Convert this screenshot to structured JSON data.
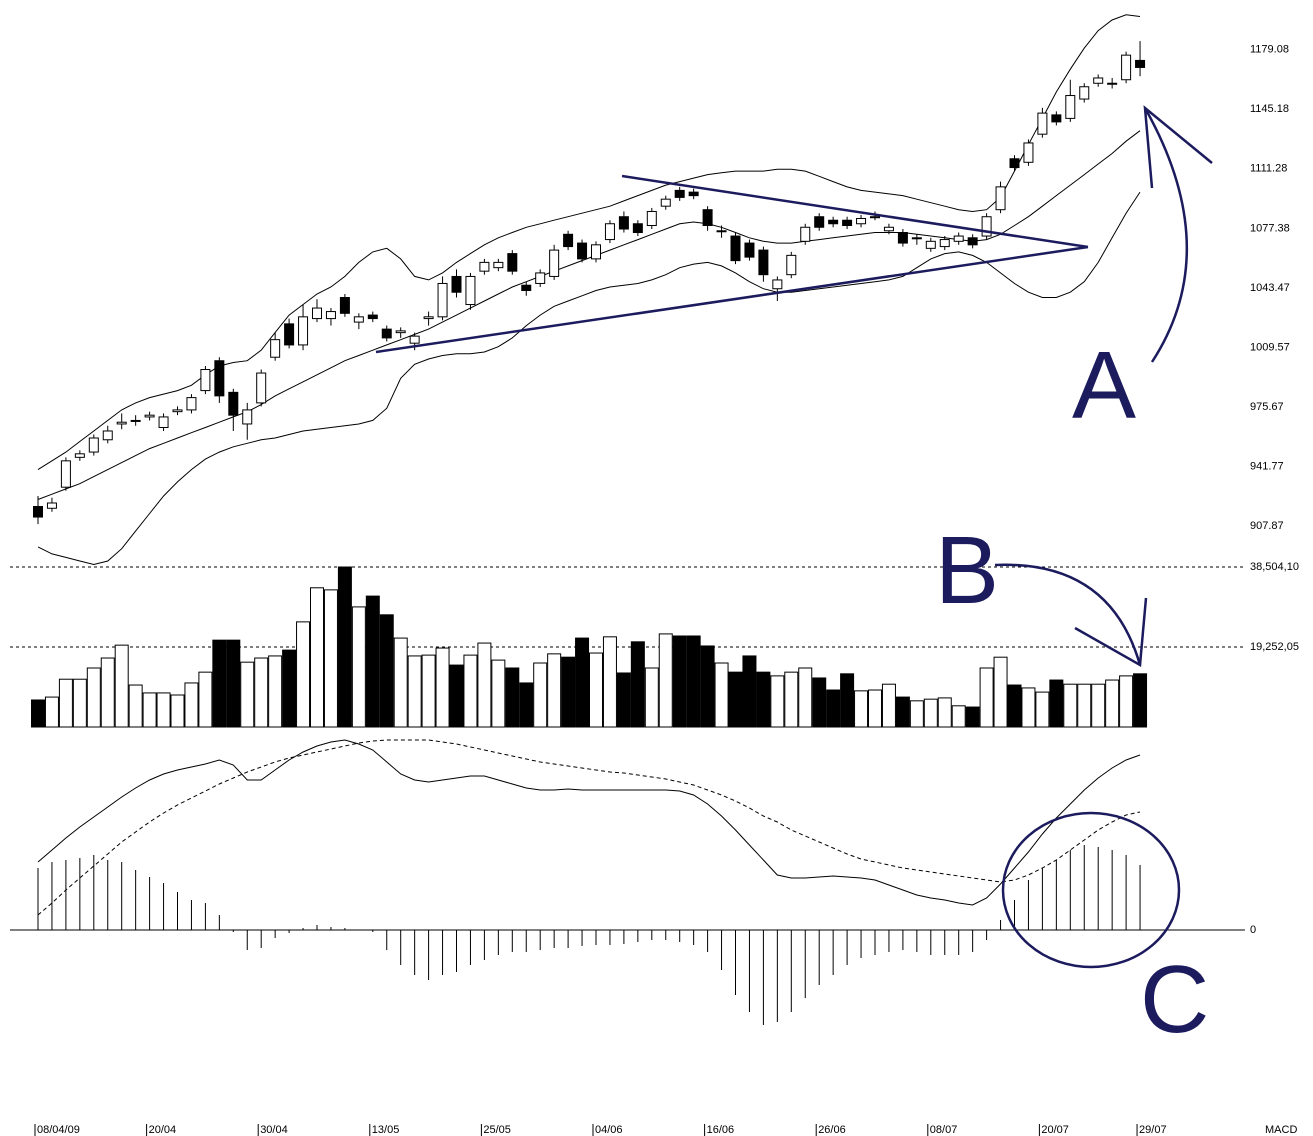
{
  "annotations": [
    "A",
    "B",
    "C"
  ],
  "chart_data": [
    {
      "type": "candlestick",
      "categories": [
        "08/04/09",
        null,
        null,
        null,
        null,
        null,
        null,
        null,
        "20/04",
        null,
        null,
        null,
        null,
        null,
        null,
        null,
        "30/04",
        null,
        null,
        null,
        null,
        null,
        null,
        null,
        "13/05",
        null,
        null,
        null,
        null,
        null,
        null,
        null,
        "25/05",
        null,
        null,
        null,
        null,
        null,
        null,
        null,
        "04/06",
        null,
        null,
        null,
        null,
        null,
        null,
        null,
        "16/06",
        null,
        null,
        null,
        null,
        null,
        null,
        null,
        "26/06",
        null,
        null,
        null,
        null,
        null,
        null,
        null,
        "08/07",
        null,
        null,
        null,
        null,
        null,
        null,
        null,
        "20/07",
        null,
        null,
        null,
        null,
        null,
        null,
        "29/07"
      ],
      "open": [
        919,
        918,
        930,
        947,
        950,
        957,
        966,
        968,
        970,
        964,
        973,
        974,
        985,
        1002,
        984,
        966,
        978,
        1004,
        1023,
        1011,
        1026,
        1026,
        1038,
        1024,
        1028,
        1020,
        1018,
        1012,
        1026,
        1027,
        1050,
        1034,
        1053,
        1055,
        1063,
        1045,
        1046,
        1050,
        1074,
        1069,
        1060,
        1071,
        1084,
        1080,
        1079,
        1090,
        1099,
        1098,
        1088,
        1076,
        1073,
        1069,
        1065,
        1043,
        1051,
        1070,
        1084,
        1082,
        1082,
        1080,
        1084,
        1076,
        1075,
        1072,
        1066,
        1067,
        1070,
        1072,
        1073,
        1088,
        1117,
        1115,
        1131,
        1142,
        1140,
        1151,
        1160,
        1160,
        1162,
        1173
      ],
      "high": [
        925,
        924,
        947,
        951,
        960,
        965,
        972,
        971,
        973,
        972,
        976,
        983,
        999,
        1004,
        986,
        978,
        997,
        1018,
        1026,
        1034,
        1037,
        1032,
        1040,
        1029,
        1030,
        1022,
        1021,
        1018,
        1030,
        1050,
        1054,
        1052,
        1060,
        1060,
        1065,
        1047,
        1054,
        1068,
        1076,
        1071,
        1070,
        1082,
        1087,
        1082,
        1089,
        1096,
        1101,
        1100,
        1090,
        1079,
        1075,
        1071,
        1067,
        1050,
        1064,
        1080,
        1086,
        1084,
        1084,
        1085,
        1087,
        1080,
        1077,
        1074,
        1072,
        1073,
        1075,
        1074,
        1086,
        1104,
        1119,
        1128,
        1146,
        1144,
        1162,
        1160,
        1165,
        1163,
        1178,
        1184
      ],
      "low": [
        909,
        916,
        928,
        945,
        948,
        955,
        963,
        965,
        968,
        962,
        971,
        972,
        983,
        978,
        962,
        957,
        976,
        1002,
        1009,
        1008,
        1024,
        1022,
        1027,
        1020,
        1024,
        1013,
        1015,
        1008,
        1022,
        1025,
        1038,
        1031,
        1051,
        1053,
        1051,
        1039,
        1044,
        1048,
        1065,
        1058,
        1058,
        1069,
        1075,
        1073,
        1077,
        1088,
        1093,
        1094,
        1076,
        1072,
        1057,
        1059,
        1047,
        1036,
        1049,
        1068,
        1076,
        1078,
        1077,
        1078,
        1082,
        1074,
        1067,
        1068,
        1064,
        1065,
        1068,
        1066,
        1071,
        1086,
        1110,
        1113,
        1129,
        1136,
        1138,
        1149,
        1158,
        1157,
        1160,
        1164
      ],
      "close": [
        913,
        921,
        945,
        949,
        958,
        962,
        967,
        968,
        971,
        970,
        974,
        981,
        997,
        982,
        971,
        974,
        995,
        1014,
        1011,
        1027,
        1032,
        1030,
        1029,
        1027,
        1026,
        1015,
        1019,
        1016,
        1027,
        1046,
        1041,
        1050,
        1058,
        1058,
        1053,
        1042,
        1052,
        1065,
        1067,
        1060,
        1068,
        1080,
        1077,
        1075,
        1087,
        1094,
        1095,
        1096,
        1079,
        1076,
        1059,
        1061,
        1051,
        1048,
        1062,
        1078,
        1078,
        1080,
        1079,
        1083,
        1084,
        1078,
        1069,
        1072,
        1070,
        1071,
        1073,
        1068,
        1084,
        1101,
        1112,
        1126,
        1143,
        1138,
        1153,
        1158,
        1163,
        1160,
        1176,
        1169
      ],
      "up_color": "#ffffff",
      "down_color": "#000000",
      "series": [
        {
          "color": "#000000",
          "values": [
            940,
            945,
            950,
            956,
            962,
            968,
            974,
            978,
            981,
            983,
            985,
            988,
            994,
            999,
            1001,
            1002,
            1008,
            1018,
            1028,
            1034,
            1040,
            1044,
            1050,
            1058,
            1064,
            1066,
            1060,
            1050,
            1048,
            1052,
            1058,
            1063,
            1068,
            1072,
            1075,
            1078,
            1080,
            1082,
            1084,
            1086,
            1088,
            1090,
            1093,
            1096,
            1099,
            1102,
            1104,
            1106,
            1108,
            1109,
            1110,
            1110,
            1110,
            1111,
            1111,
            1110,
            1107,
            1104,
            1101,
            1099,
            1098,
            1097,
            1096,
            1094,
            1092,
            1090,
            1088,
            1087,
            1088,
            1095,
            1110,
            1125,
            1140,
            1155,
            1168,
            1180,
            1190,
            1196,
            1199,
            1198
          ]
        },
        {
          "color": "#000000",
          "values": [
            923,
            926,
            929,
            932,
            936,
            940,
            944,
            948,
            952,
            955,
            958,
            961,
            964,
            967,
            970,
            973,
            977,
            982,
            986,
            990,
            994,
            998,
            1002,
            1005,
            1008,
            1011,
            1014,
            1017,
            1020,
            1024,
            1028,
            1032,
            1036,
            1040,
            1044,
            1047,
            1050,
            1053,
            1056,
            1059,
            1062,
            1065,
            1068,
            1071,
            1074,
            1077,
            1080,
            1081,
            1080,
            1078,
            1075,
            1072,
            1070,
            1069,
            1069,
            1070,
            1071,
            1072,
            1073,
            1074,
            1075,
            1075,
            1075,
            1074,
            1073,
            1072,
            1071,
            1070,
            1071,
            1074,
            1079,
            1084,
            1090,
            1096,
            1102,
            1108,
            1114,
            1120,
            1127,
            1133
          ]
        },
        {
          "color": "#000000",
          "values": [
            896,
            892,
            890,
            888,
            886,
            888,
            895,
            905,
            915,
            925,
            933,
            940,
            946,
            950,
            953,
            955,
            957,
            958,
            960,
            962,
            963,
            964,
            965,
            966,
            968,
            975,
            992,
            1000,
            1003,
            1005,
            1006,
            1006,
            1007,
            1010,
            1015,
            1022,
            1028,
            1033,
            1036,
            1039,
            1042,
            1044,
            1045,
            1046,
            1048,
            1051,
            1055,
            1057,
            1058,
            1056,
            1052,
            1047,
            1043,
            1041,
            1041,
            1042,
            1043,
            1044,
            1045,
            1046,
            1047,
            1048,
            1050,
            1055,
            1060,
            1063,
            1064,
            1062,
            1058,
            1052,
            1046,
            1041,
            1038,
            1038,
            1041,
            1047,
            1058,
            1072,
            1086,
            1098
          ]
        }
      ],
      "ylim": [
        880,
        1200
      ],
      "yticks": [
        907.87,
        941.77,
        975.67,
        1009.57,
        1043.47,
        1077.38,
        1111.28,
        1145.18,
        1179.08
      ]
    },
    {
      "type": "bar",
      "values": [
        6500,
        7200,
        11500,
        11500,
        14200,
        16600,
        19700,
        10100,
        8200,
        8200,
        7700,
        10600,
        13200,
        20900,
        20900,
        15600,
        16600,
        17100,
        18500,
        25300,
        33500,
        33000,
        38500,
        28900,
        31500,
        27000,
        21400,
        17100,
        17300,
        19000,
        14900,
        17300,
        20200,
        16100,
        14200,
        10600,
        15400,
        17600,
        16800,
        21400,
        17800,
        21700,
        13000,
        20500,
        14200,
        22400,
        21900,
        21900,
        19500,
        15400,
        13200,
        17100,
        13200,
        12300,
        13200,
        14200,
        11800,
        8900,
        12800,
        8700,
        8900,
        10300,
        7200,
        6300,
        6700,
        7000,
        5100,
        4800,
        14200,
        16800,
        10100,
        9400,
        8400,
        11300,
        10300,
        10300,
        10300,
        11300,
        12300,
        12800
      ],
      "up_color": "#ffffff",
      "down_color": "#000000",
      "ylim": [
        0,
        38504.1
      ],
      "yticks": [
        {
          "value": 19252.05,
          "label": "19,252,05"
        },
        {
          "value": 38504.1,
          "label": "38,504,10"
        }
      ],
      "grid": true,
      "grid_dash": true
    },
    {
      "type": "macd",
      "title": "MACD",
      "series": [
        {
          "color": "#000000",
          "dashed": false,
          "values": [
            68,
            80,
            92,
            103,
            113,
            123,
            133,
            142,
            150,
            156,
            160,
            163,
            166,
            170,
            165,
            150,
            150,
            160,
            170,
            178,
            184,
            188,
            190,
            186,
            180,
            168,
            156,
            150,
            148,
            150,
            152,
            154,
            154,
            150,
            146,
            142,
            140,
            140,
            141,
            140,
            140,
            140,
            140,
            140,
            140,
            140,
            139,
            135,
            126,
            114,
            100,
            85,
            70,
            55,
            52,
            52,
            53,
            54,
            53,
            52,
            50,
            45,
            40,
            35,
            32,
            30,
            27,
            25,
            32,
            46,
            62,
            78,
            96,
            112,
            126,
            140,
            152,
            162,
            170,
            175
          ]
        },
        {
          "color": "#000000",
          "dashed": true,
          "values": [
            15,
            27,
            40,
            52,
            64,
            76,
            88,
            98,
            108,
            117,
            125,
            132,
            139,
            146,
            152,
            158,
            163,
            168,
            172,
            175,
            178,
            181,
            184,
            187,
            189,
            190,
            190,
            190,
            190,
            188,
            186,
            183,
            180,
            177,
            174,
            171,
            168,
            166,
            164,
            162,
            160,
            158,
            157,
            155,
            153,
            151,
            148,
            145,
            140,
            135,
            129,
            122,
            114,
            108,
            100,
            94,
            88,
            82,
            76,
            71,
            68,
            65,
            62,
            60,
            58,
            56,
            54,
            52,
            50,
            48,
            50,
            55,
            62,
            70,
            80,
            90,
            100,
            108,
            115,
            118
          ]
        }
      ],
      "histogram": [
        62,
        68,
        70,
        72,
        75,
        70,
        68,
        60,
        53,
        47,
        38,
        30,
        27,
        15,
        -2,
        -20,
        -18,
        -8,
        -3,
        2,
        5,
        3,
        2,
        0,
        -2,
        -20,
        -35,
        -45,
        -50,
        -45,
        -42,
        -35,
        -30,
        -25,
        -22,
        -22,
        -20,
        -18,
        -18,
        -16,
        -15,
        -15,
        -14,
        -12,
        -10,
        -10,
        -12,
        -15,
        -22,
        -40,
        -65,
        -82,
        -95,
        -92,
        -82,
        -68,
        -55,
        -45,
        -35,
        -28,
        -25,
        -22,
        -20,
        -22,
        -25,
        -25,
        -25,
        -22,
        -10,
        10,
        30,
        50,
        62,
        70,
        80,
        85,
        83,
        80,
        75,
        65
      ],
      "ylim": [
        -130,
        200
      ],
      "yticks": [
        0
      ],
      "grid": true,
      "grid_dash": false
    }
  ]
}
